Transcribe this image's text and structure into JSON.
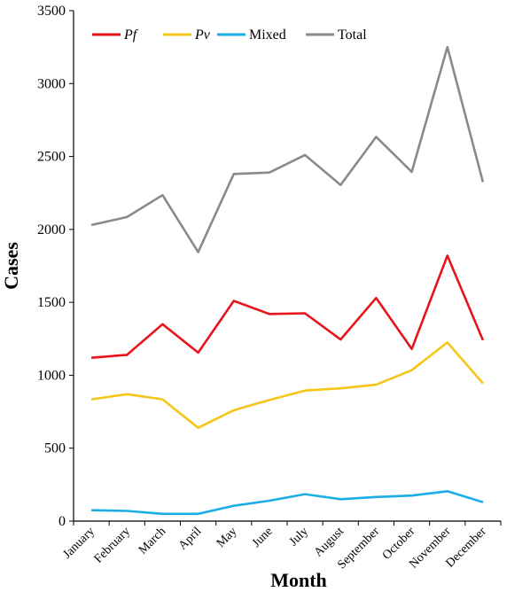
{
  "chart_data": {
    "type": "line",
    "xlabel": "Month",
    "ylabel": "Cases",
    "ylim": [
      0,
      3500
    ],
    "yticks": [
      "0",
      "500",
      "1000",
      "1500",
      "2000",
      "2500",
      "3000",
      "3500"
    ],
    "categories": [
      "January",
      "February",
      "March",
      "April",
      "May",
      "June",
      "July",
      "August",
      "September",
      "October",
      "November",
      "December"
    ],
    "grid": false,
    "legend_position": "top-left",
    "series": [
      {
        "name": "Pf",
        "italic": true,
        "color": "#e8141a",
        "values": [
          1120,
          1140,
          1350,
          1155,
          1510,
          1420,
          1425,
          1245,
          1530,
          1180,
          1820,
          1240
        ]
      },
      {
        "name": "Pv",
        "italic": true,
        "color": "#f5c518",
        "values": [
          835,
          870,
          835,
          640,
          760,
          830,
          895,
          910,
          935,
          1035,
          1225,
          945
        ]
      },
      {
        "name": "Mixed",
        "italic": false,
        "color": "#1aaee5",
        "values": [
          75,
          70,
          50,
          50,
          105,
          140,
          185,
          150,
          165,
          175,
          205,
          130
        ]
      },
      {
        "name": "Total",
        "italic": false,
        "color": "#8a8a8a",
        "values": [
          2030,
          2085,
          2235,
          1845,
          2380,
          2390,
          2510,
          2305,
          2635,
          2395,
          3250,
          2325
        ]
      }
    ]
  }
}
